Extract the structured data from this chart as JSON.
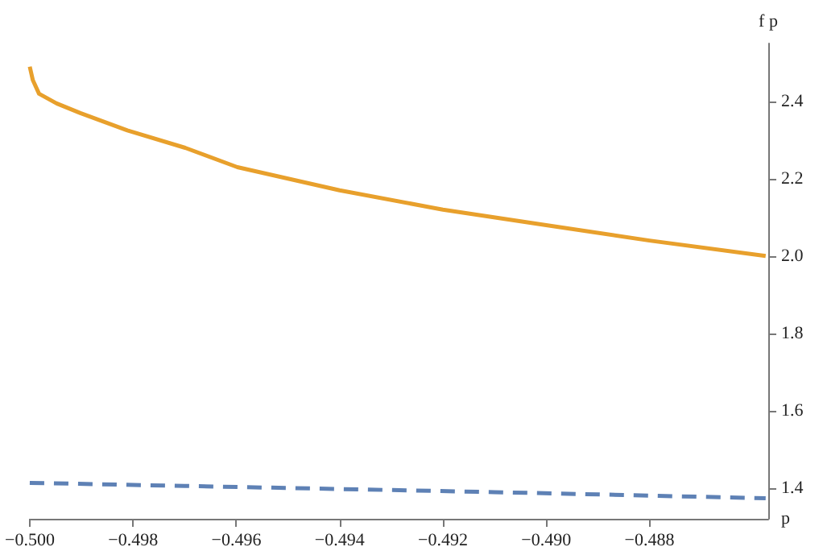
{
  "chart_data": {
    "type": "line",
    "xlabel": "p",
    "ylabel": "f p",
    "xlim": [
      -0.5,
      -0.4857
    ],
    "ylim": [
      1.32,
      2.55
    ],
    "xticks": [
      {
        "value": -0.5,
        "label": "−0.500"
      },
      {
        "value": -0.498,
        "label": "−0.498"
      },
      {
        "value": -0.496,
        "label": "−0.496"
      },
      {
        "value": -0.494,
        "label": "−0.494"
      },
      {
        "value": -0.492,
        "label": "−0.492"
      },
      {
        "value": -0.49,
        "label": "−0.490"
      },
      {
        "value": -0.488,
        "label": "−0.488"
      }
    ],
    "yticks": [
      {
        "value": 1.4,
        "label": "1.4"
      },
      {
        "value": 1.6,
        "label": "1.6"
      },
      {
        "value": 1.8,
        "label": "1.8"
      },
      {
        "value": 2.0,
        "label": "2.0"
      },
      {
        "value": 2.2,
        "label": "2.2"
      },
      {
        "value": 2.4,
        "label": "2.4"
      }
    ],
    "grid": false,
    "marker": "none",
    "series": [
      {
        "color": "#e8a02c",
        "line_style": "solid",
        "x": [
          -0.5,
          -0.49994,
          -0.49982,
          -0.49948,
          -0.49902,
          -0.49811,
          -0.49699,
          -0.49598,
          -0.494,
          -0.492,
          -0.49,
          -0.488,
          -0.48575
        ],
        "values": [
          2.49,
          2.455,
          2.42,
          2.395,
          2.37,
          2.325,
          2.28,
          2.23,
          2.17,
          2.12,
          2.08,
          2.04,
          2.0
        ]
      },
      {
        "color": "#5e81b5",
        "line_style": "dashed",
        "x": [
          -0.5,
          -0.497,
          -0.494,
          -0.491,
          -0.488,
          -0.48575
        ],
        "values": [
          1.413,
          1.405,
          1.397,
          1.389,
          1.38,
          1.373
        ]
      }
    ]
  }
}
